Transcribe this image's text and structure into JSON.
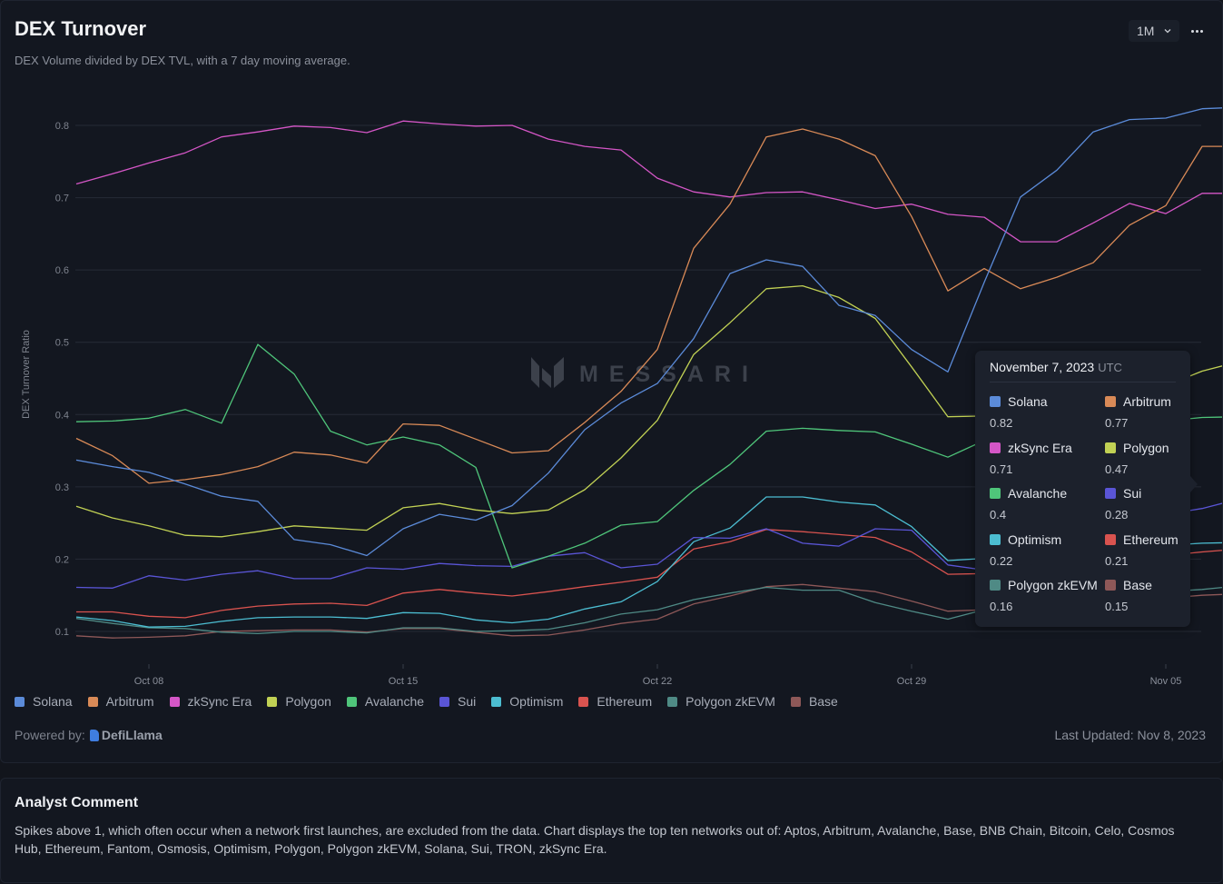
{
  "header": {
    "title": "DEX Turnover",
    "subtitle": "DEX Volume divided by DEX TVL, with a 7 day moving average.",
    "range_selected": "1M",
    "range_icon": "chevron-down-icon",
    "more_icon": "more-horizontal-icon"
  },
  "watermark": "MESSARI",
  "tooltip": {
    "date": "November 7, 2023",
    "timezone": "UTC",
    "items": [
      {
        "name": "Solana",
        "value": "0.82",
        "color": "#5b8bd9"
      },
      {
        "name": "Arbitrum",
        "value": "0.77",
        "color": "#d98a57"
      },
      {
        "name": "zkSync Era",
        "value": "0.71",
        "color": "#d456c6"
      },
      {
        "name": "Polygon",
        "value": "0.47",
        "color": "#c1d154"
      },
      {
        "name": "Avalanche",
        "value": "0.4",
        "color": "#4fc57a"
      },
      {
        "name": "Sui",
        "value": "0.28",
        "color": "#5a55d6"
      },
      {
        "name": "Optimism",
        "value": "0.22",
        "color": "#4cbdd1"
      },
      {
        "name": "Ethereum",
        "value": "0.21",
        "color": "#d9534f"
      },
      {
        "name": "Polygon zkEVM",
        "value": "0.16",
        "color": "#4f8a85"
      },
      {
        "name": "Base",
        "value": "0.15",
        "color": "#8e5858"
      }
    ]
  },
  "footer": {
    "powered_by_label": "Powered by:",
    "powered_by_brand": "DefiLlama",
    "last_updated": "Last Updated: Nov 8, 2023"
  },
  "comment": {
    "title": "Analyst Comment",
    "body": "Spikes above 1, which often occur when a network first launches, are excluded from the data. Chart displays the top ten networks out of: Aptos, Arbitrum, Avalanche, Base, BNB Chain, Bitcoin, Celo, Cosmos Hub, Ethereum, Fantom, Osmosis, Optimism, Polygon, Polygon zkEVM, Solana, Sui, TRON, zkSync Era."
  },
  "chart_data": {
    "type": "line",
    "title": "DEX Turnover",
    "xlabel": "",
    "ylabel": "DEX Turnover Ratio",
    "ylim": [
      0.1,
      0.8
    ],
    "yticks": [
      "0.1",
      "0.2",
      "0.3",
      "0.4",
      "0.5",
      "0.6",
      "0.7",
      "0.8"
    ],
    "grid": true,
    "legend": "bottom",
    "x_start": "2023-10-06",
    "x_end": "2023-11-07",
    "xticks": [
      {
        "label": "Oct 08",
        "index": 2
      },
      {
        "label": "Oct 15",
        "index": 9
      },
      {
        "label": "Oct 22",
        "index": 16
      },
      {
        "label": "Oct 29",
        "index": 23
      },
      {
        "label": "Nov 05",
        "index": 30
      }
    ],
    "hover_index": 32,
    "series": [
      {
        "name": "Solana",
        "color": "#5b8bd9",
        "values": [
          0.337,
          0.328,
          0.32,
          0.304,
          0.287,
          0.28,
          0.227,
          0.22,
          0.205,
          0.242,
          0.262,
          0.254,
          0.274,
          0.319,
          0.379,
          0.416,
          0.443,
          0.505,
          0.595,
          0.614,
          0.605,
          0.551,
          0.537,
          0.49,
          0.459,
          0.583,
          0.701,
          0.738,
          0.791,
          0.808,
          0.81,
          0.823,
          0.825
        ]
      },
      {
        "name": "Arbitrum",
        "color": "#d98a57",
        "values": [
          0.367,
          0.343,
          0.305,
          0.31,
          0.317,
          0.328,
          0.348,
          0.344,
          0.333,
          0.387,
          0.385,
          0.366,
          0.347,
          0.35,
          0.389,
          0.432,
          0.49,
          0.63,
          0.691,
          0.784,
          0.795,
          0.781,
          0.758,
          0.674,
          0.571,
          0.602,
          0.574,
          0.59,
          0.61,
          0.662,
          0.689,
          0.771,
          0.771
        ]
      },
      {
        "name": "zkSync Era",
        "color": "#d456c6",
        "values": [
          0.719,
          0.733,
          0.748,
          0.762,
          0.784,
          0.791,
          0.799,
          0.797,
          0.79,
          0.806,
          0.802,
          0.799,
          0.8,
          0.781,
          0.771,
          0.766,
          0.727,
          0.708,
          0.701,
          0.707,
          0.708,
          0.697,
          0.685,
          0.691,
          0.677,
          0.673,
          0.639,
          0.639,
          0.665,
          0.692,
          0.678,
          0.706,
          0.706
        ]
      },
      {
        "name": "Polygon",
        "color": "#c1d154",
        "values": [
          0.273,
          0.257,
          0.246,
          0.233,
          0.231,
          0.238,
          0.246,
          0.243,
          0.24,
          0.271,
          0.277,
          0.268,
          0.263,
          0.268,
          0.296,
          0.34,
          0.392,
          0.483,
          0.527,
          0.574,
          0.578,
          0.562,
          0.533,
          0.466,
          0.397,
          0.398,
          0.405,
          0.41,
          0.42,
          0.43,
          0.44,
          0.46,
          0.473
        ]
      },
      {
        "name": "Avalanche",
        "color": "#4fc57a",
        "values": [
          0.39,
          0.391,
          0.395,
          0.407,
          0.388,
          0.497,
          0.456,
          0.377,
          0.358,
          0.369,
          0.358,
          0.327,
          0.188,
          0.204,
          0.222,
          0.247,
          0.252,
          0.295,
          0.331,
          0.377,
          0.381,
          0.378,
          0.376,
          0.359,
          0.341,
          0.364,
          0.372,
          0.378,
          0.384,
          0.388,
          0.391,
          0.396,
          0.397
        ]
      },
      {
        "name": "Sui",
        "color": "#5a55d6",
        "values": [
          0.161,
          0.16,
          0.177,
          0.171,
          0.179,
          0.184,
          0.173,
          0.173,
          0.188,
          0.186,
          0.194,
          0.191,
          0.19,
          0.204,
          0.209,
          0.188,
          0.193,
          0.23,
          0.229,
          0.242,
          0.222,
          0.218,
          0.242,
          0.24,
          0.192,
          0.185,
          0.2,
          0.215,
          0.235,
          0.25,
          0.262,
          0.27,
          0.283
        ]
      },
      {
        "name": "Optimism",
        "color": "#4cbdd1",
        "values": [
          0.12,
          0.115,
          0.106,
          0.107,
          0.114,
          0.119,
          0.12,
          0.12,
          0.118,
          0.126,
          0.125,
          0.116,
          0.112,
          0.117,
          0.131,
          0.141,
          0.169,
          0.224,
          0.243,
          0.286,
          0.286,
          0.279,
          0.275,
          0.245,
          0.198,
          0.201,
          0.205,
          0.208,
          0.212,
          0.216,
          0.219,
          0.222,
          0.223
        ]
      },
      {
        "name": "Ethereum",
        "color": "#d9534f",
        "values": [
          0.127,
          0.127,
          0.121,
          0.119,
          0.129,
          0.135,
          0.138,
          0.139,
          0.136,
          0.153,
          0.158,
          0.153,
          0.149,
          0.155,
          0.162,
          0.168,
          0.175,
          0.214,
          0.224,
          0.241,
          0.238,
          0.234,
          0.23,
          0.21,
          0.179,
          0.18,
          0.185,
          0.19,
          0.195,
          0.2,
          0.205,
          0.21,
          0.214
        ]
      },
      {
        "name": "Polygon zkEVM",
        "color": "#4f8a85",
        "values": [
          0.118,
          0.111,
          0.105,
          0.104,
          0.099,
          0.097,
          0.1,
          0.1,
          0.098,
          0.105,
          0.105,
          0.1,
          0.101,
          0.103,
          0.112,
          0.124,
          0.13,
          0.144,
          0.153,
          0.161,
          0.157,
          0.157,
          0.14,
          0.128,
          0.117,
          0.13,
          0.135,
          0.14,
          0.145,
          0.15,
          0.155,
          0.158,
          0.163
        ]
      },
      {
        "name": "Base",
        "color": "#8e5858",
        "values": [
          0.094,
          0.091,
          0.092,
          0.094,
          0.1,
          0.101,
          0.102,
          0.102,
          0.099,
          0.104,
          0.104,
          0.099,
          0.094,
          0.095,
          0.102,
          0.111,
          0.117,
          0.138,
          0.149,
          0.162,
          0.165,
          0.16,
          0.155,
          0.142,
          0.128,
          0.13,
          0.133,
          0.136,
          0.14,
          0.143,
          0.146,
          0.15,
          0.152
        ]
      }
    ]
  }
}
